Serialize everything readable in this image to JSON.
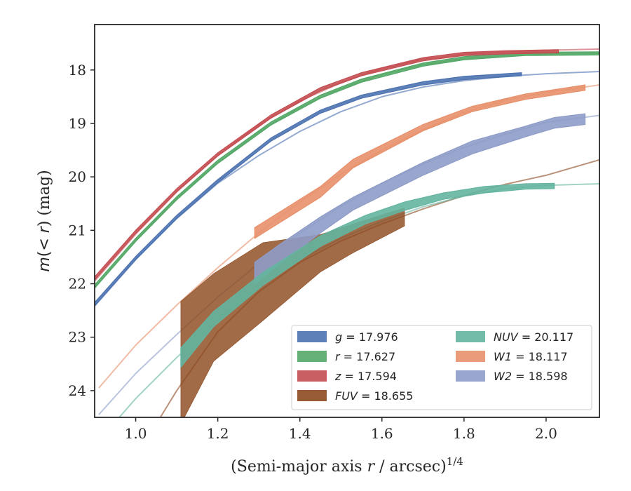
{
  "chart_data": {
    "type": "line",
    "xlabel": "(Semi-major axis r / arcsec)¹ᐟ⁴",
    "xlabel_text": "(Semi-major axis ",
    "xlabel_var": "r",
    "xlabel_rest": " / arcsec)",
    "xlabel_sup": "1/4",
    "ylabel_m": "m",
    "ylabel_mid": "(< ",
    "ylabel_r": "r",
    "ylabel_end": ") (mag)",
    "xlim": [
      0.9,
      2.13
    ],
    "ylim": [
      24.5,
      17.15
    ],
    "y_inverted": true,
    "xticks": [
      1.0,
      1.2,
      1.4,
      1.6,
      1.8,
      2.0
    ],
    "xtick_labels": [
      "1.0",
      "1.2",
      "1.4",
      "1.6",
      "1.8",
      "2.0"
    ],
    "yticks": [
      18,
      19,
      20,
      21,
      22,
      23,
      24
    ],
    "ytick_labels": [
      "18",
      "19",
      "20",
      "21",
      "22",
      "23",
      "24"
    ],
    "grid": false,
    "legend_position": "lower-right",
    "series": [
      {
        "name": "g = 17.976",
        "legend_var": "g",
        "legend_val": "= 17.976",
        "color": "#4c72b0",
        "model": [
          [
            0.9,
            22.42
          ],
          [
            1.0,
            21.55
          ],
          [
            1.1,
            20.78
          ],
          [
            1.2,
            20.12
          ],
          [
            1.3,
            19.6
          ],
          [
            1.4,
            19.15
          ],
          [
            1.5,
            18.78
          ],
          [
            1.6,
            18.5
          ],
          [
            1.7,
            18.32
          ],
          [
            1.8,
            18.2
          ],
          [
            1.9,
            18.12
          ],
          [
            2.0,
            18.07
          ],
          [
            2.13,
            18.03
          ]
        ],
        "data": [
          [
            0.9,
            22.38,
            0.03
          ],
          [
            1.0,
            21.52,
            0.03
          ],
          [
            1.1,
            20.75,
            0.03
          ],
          [
            1.2,
            20.08,
            0.03
          ],
          [
            1.33,
            19.3,
            0.03
          ],
          [
            1.45,
            18.78,
            0.03
          ],
          [
            1.55,
            18.5,
            0.03
          ],
          [
            1.7,
            18.25,
            0.03
          ],
          [
            1.8,
            18.15,
            0.03
          ],
          [
            1.94,
            18.08,
            0.03
          ]
        ]
      },
      {
        "name": "r = 17.627",
        "legend_var": "r",
        "legend_val": "= 17.627",
        "color": "#55a868",
        "model": [
          [
            0.9,
            22.08
          ],
          [
            1.0,
            21.2
          ],
          [
            1.1,
            20.4
          ],
          [
            1.2,
            19.74
          ],
          [
            1.3,
            19.16
          ],
          [
            1.4,
            18.7
          ],
          [
            1.5,
            18.35
          ],
          [
            1.6,
            18.08
          ],
          [
            1.7,
            17.9
          ],
          [
            1.8,
            17.79
          ],
          [
            1.9,
            17.73
          ],
          [
            2.0,
            17.7
          ],
          [
            2.13,
            17.69
          ]
        ],
        "data": [
          [
            0.9,
            22.05,
            0.03
          ],
          [
            1.0,
            21.18,
            0.03
          ],
          [
            1.1,
            20.4,
            0.03
          ],
          [
            1.2,
            19.72,
            0.03
          ],
          [
            1.33,
            19.0,
            0.03
          ],
          [
            1.45,
            18.5,
            0.03
          ],
          [
            1.55,
            18.2,
            0.03
          ],
          [
            1.7,
            17.9,
            0.03
          ],
          [
            1.8,
            17.78,
            0.03
          ],
          [
            1.95,
            17.7,
            0.03
          ],
          [
            2.13,
            17.69,
            0.03
          ]
        ]
      },
      {
        "name": "z = 17.594",
        "legend_var": "z",
        "legend_val": "= 17.594",
        "color": "#c44e52",
        "model": [
          [
            0.9,
            21.95
          ],
          [
            1.0,
            21.07
          ],
          [
            1.1,
            20.28
          ],
          [
            1.2,
            19.6
          ],
          [
            1.3,
            19.03
          ],
          [
            1.4,
            18.58
          ],
          [
            1.5,
            18.24
          ],
          [
            1.6,
            17.97
          ],
          [
            1.7,
            17.8
          ],
          [
            1.8,
            17.71
          ],
          [
            1.9,
            17.66
          ],
          [
            2.0,
            17.63
          ],
          [
            2.13,
            17.61
          ]
        ],
        "data": [
          [
            0.9,
            21.9,
            0.03
          ],
          [
            1.0,
            21.03,
            0.03
          ],
          [
            1.1,
            20.25,
            0.03
          ],
          [
            1.2,
            19.58,
            0.03
          ],
          [
            1.33,
            18.87,
            0.03
          ],
          [
            1.45,
            18.36,
            0.03
          ],
          [
            1.55,
            18.08,
            0.03
          ],
          [
            1.7,
            17.8,
            0.03
          ],
          [
            1.8,
            17.7,
            0.03
          ],
          [
            1.9,
            17.67,
            0.03
          ],
          [
            2.03,
            17.65,
            0.03
          ]
        ]
      },
      {
        "name": "FUV = 18.655",
        "legend_var": "FUV",
        "legend_val": "= 18.655",
        "color": "#8c4a20",
        "model": [
          [
            1.06,
            24.5
          ],
          [
            1.1,
            24.0
          ],
          [
            1.2,
            22.9
          ],
          [
            1.3,
            22.15
          ],
          [
            1.4,
            21.6
          ],
          [
            1.5,
            21.2
          ],
          [
            1.6,
            20.88
          ],
          [
            1.7,
            20.6
          ],
          [
            1.8,
            20.35
          ],
          [
            1.9,
            20.14
          ],
          [
            2.0,
            19.97
          ],
          [
            2.13,
            19.68
          ]
        ],
        "data": [
          [
            1.11,
            23.48,
            1.15
          ],
          [
            1.19,
            22.63,
            0.82
          ],
          [
            1.31,
            21.96,
            0.73
          ],
          [
            1.45,
            21.43,
            0.35
          ],
          [
            1.53,
            21.15,
            0.27
          ],
          [
            1.655,
            20.75,
            0.17
          ]
        ]
      },
      {
        "name": "NUV = 20.117",
        "legend_var": "NUV",
        "legend_val": "= 20.117",
        "color": "#64b5a0",
        "model": [
          [
            0.96,
            24.5
          ],
          [
            1.0,
            24.15
          ],
          [
            1.1,
            23.38
          ],
          [
            1.2,
            22.66
          ],
          [
            1.3,
            22.05
          ],
          [
            1.4,
            21.55
          ],
          [
            1.5,
            21.15
          ],
          [
            1.6,
            20.83
          ],
          [
            1.7,
            20.56
          ],
          [
            1.8,
            20.36
          ],
          [
            1.9,
            20.22
          ],
          [
            2.0,
            20.16
          ],
          [
            2.13,
            20.13
          ]
        ],
        "data": [
          [
            1.11,
            23.38,
            0.18
          ],
          [
            1.19,
            22.66,
            0.14
          ],
          [
            1.31,
            21.91,
            0.12
          ],
          [
            1.45,
            21.2,
            0.1
          ],
          [
            1.56,
            20.8,
            0.08
          ],
          [
            1.655,
            20.55,
            0.08
          ],
          [
            1.75,
            20.36,
            0.06
          ],
          [
            1.85,
            20.24,
            0.06
          ],
          [
            1.95,
            20.18,
            0.05
          ],
          [
            2.02,
            20.17,
            0.05
          ]
        ]
      },
      {
        "name": "W1 = 18.117",
        "legend_var": "W1",
        "legend_val": "= 18.117",
        "color": "#e8906b",
        "model": [
          [
            0.91,
            23.95
          ],
          [
            1.0,
            23.15
          ],
          [
            1.1,
            22.4
          ],
          [
            1.2,
            21.7
          ],
          [
            1.3,
            21.05
          ],
          [
            1.4,
            20.47
          ],
          [
            1.5,
            19.95
          ],
          [
            1.6,
            19.5
          ],
          [
            1.7,
            19.12
          ],
          [
            1.8,
            18.8
          ],
          [
            1.9,
            18.56
          ],
          [
            2.0,
            18.42
          ],
          [
            2.13,
            18.28
          ]
        ],
        "data": [
          [
            1.29,
            21.05,
            0.1
          ],
          [
            1.45,
            20.28,
            0.1
          ],
          [
            1.53,
            19.75,
            0.08
          ],
          [
            1.7,
            19.08,
            0.06
          ],
          [
            1.82,
            18.73,
            0.05
          ],
          [
            1.95,
            18.5,
            0.05
          ],
          [
            2.095,
            18.33,
            0.05
          ]
        ]
      },
      {
        "name": "W2 = 18.598",
        "legend_var": "W2",
        "legend_val": "= 18.598",
        "color": "#8e9cc8",
        "model": [
          [
            0.91,
            24.45
          ],
          [
            1.0,
            23.68
          ],
          [
            1.1,
            22.95
          ],
          [
            1.2,
            22.25
          ],
          [
            1.3,
            21.62
          ],
          [
            1.4,
            21.05
          ],
          [
            1.5,
            20.55
          ],
          [
            1.6,
            20.12
          ],
          [
            1.7,
            19.76
          ],
          [
            1.8,
            19.45
          ],
          [
            1.9,
            19.2
          ],
          [
            2.0,
            18.98
          ],
          [
            2.13,
            18.85
          ]
        ],
        "data": [
          [
            1.29,
            21.8,
            0.2
          ],
          [
            1.35,
            21.45,
            0.18
          ],
          [
            1.45,
            20.9,
            0.15
          ],
          [
            1.53,
            20.5,
            0.12
          ],
          [
            1.7,
            19.85,
            0.12
          ],
          [
            1.82,
            19.45,
            0.12
          ],
          [
            1.95,
            19.15,
            0.1
          ],
          [
            2.02,
            18.99,
            0.1
          ],
          [
            2.095,
            18.92,
            0.1
          ]
        ]
      }
    ]
  }
}
